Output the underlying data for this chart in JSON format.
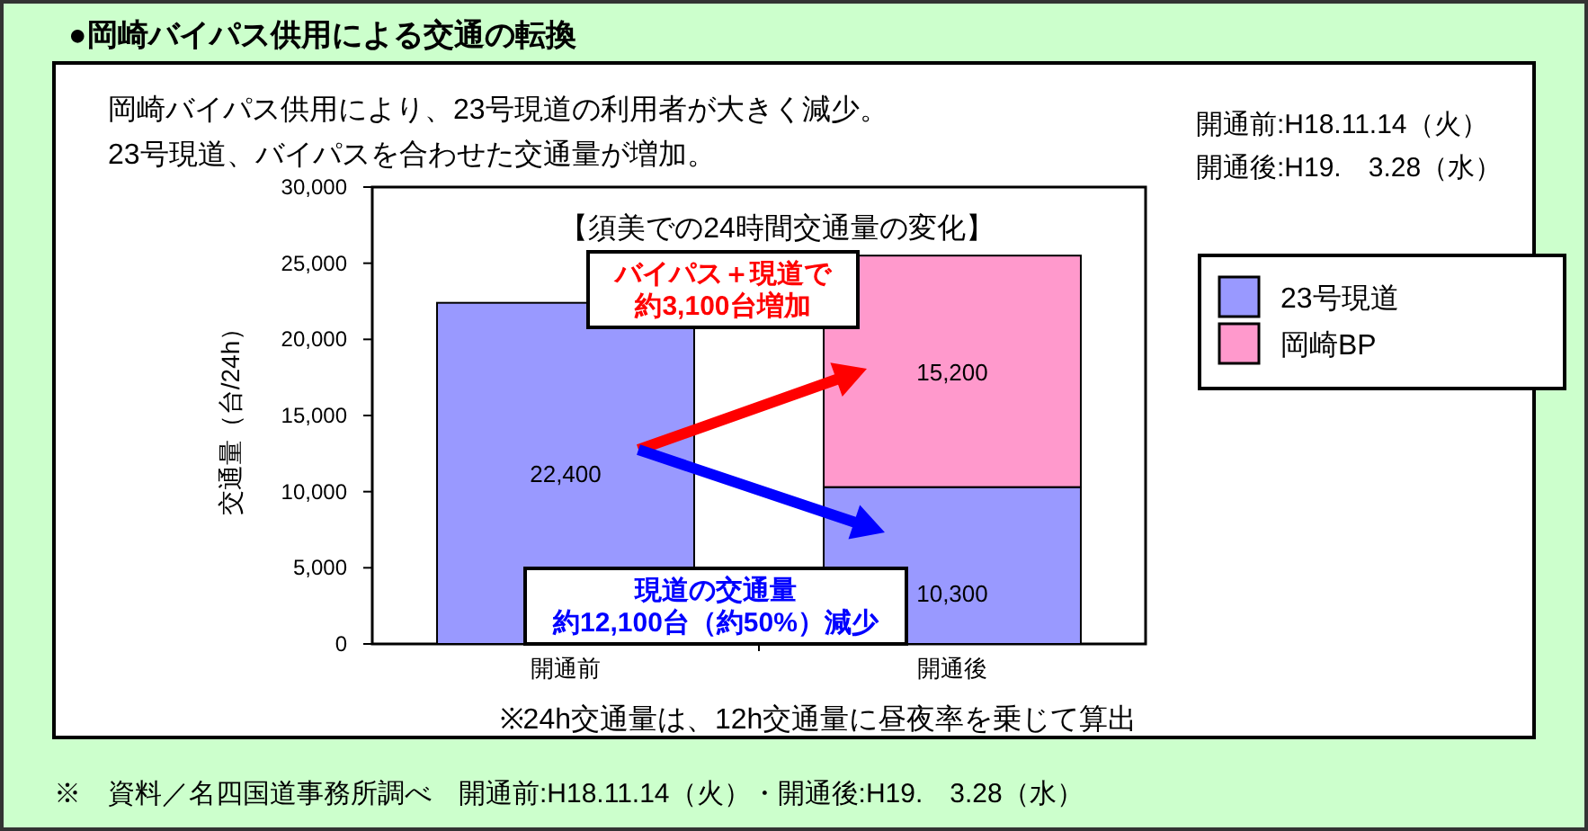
{
  "chart_data": {
    "type": "bar",
    "stacked": true,
    "title": "●岡崎バイパス供用による交通の転換",
    "subtitle": "【須美での24時間交通量の変化】",
    "ylabel": "交通量（台/24h）",
    "categories": [
      "開通前",
      "開通後"
    ],
    "series": [
      {
        "name": "23号現道",
        "color": "#9999ff",
        "values": [
          22400,
          10300
        ]
      },
      {
        "name": "岡崎BP",
        "color": "#ff99cc",
        "values": [
          null,
          15200
        ]
      }
    ],
    "ylim": [
      0,
      30000
    ],
    "yticks": [
      0,
      {
        "value": 5000,
        "label": "5,000"
      },
      {
        "value": 10000,
        "label": "10,000"
      },
      {
        "value": 15000,
        "label": "15,000"
      },
      {
        "value": 20000,
        "label": "20,000"
      },
      {
        "value": 25000,
        "label": "25,000"
      },
      {
        "value": 30000,
        "label": "30,000"
      }
    ],
    "value_labels": [
      [
        "22,400",
        "10,300"
      ],
      [
        null,
        "15,200"
      ]
    ],
    "legend": "right",
    "annotations": [
      "岡崎バイパス供用により、23号現道の利用者が大きく減少。",
      "23号現道、バイパスを合わせた交通量が増加。",
      "開通前:H18.11.14（火）",
      "開通後:H19.　3.28（水）",
      "バイパス＋現道で",
      "約3,100台増加",
      "現道の交通量",
      "約12,100台（約50%）減少",
      "※24h交通量は、12h交通量に昼夜率を乗じて算出",
      "※　資料／名四国道事務所調べ　開通前:H18.11.14（火）・開通後:H19.　3.28（水）"
    ]
  }
}
